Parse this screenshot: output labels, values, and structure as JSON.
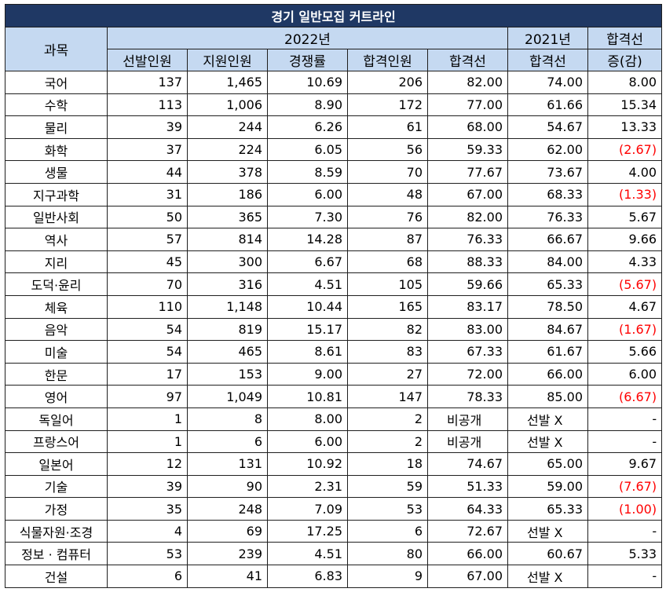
{
  "title": "경기 일반모집 커트라인",
  "header": {
    "subject": "과목",
    "year2022": "2022년",
    "year2021": "2021년",
    "diff_line1": "합격선",
    "diff_line2": "증(감)",
    "cols": [
      "선발인원",
      "지원인원",
      "경쟁률",
      "합격인원",
      "합격선",
      "합격선"
    ]
  },
  "colors": {
    "title_bg": "#1f3864",
    "header_bg": "#c5d9f1",
    "negative": "#ff0000"
  },
  "rows": [
    {
      "subject": "국어",
      "selected": "137",
      "applicants": "1,465",
      "ratio": "10.69",
      "passed": "206",
      "cut2022": "82.00",
      "cut2021": "74.00",
      "diff": "8.00",
      "neg": false
    },
    {
      "subject": "수학",
      "selected": "113",
      "applicants": "1,006",
      "ratio": "8.90",
      "passed": "172",
      "cut2022": "77.00",
      "cut2021": "61.66",
      "diff": "15.34",
      "neg": false
    },
    {
      "subject": "물리",
      "selected": "39",
      "applicants": "244",
      "ratio": "6.26",
      "passed": "61",
      "cut2022": "68.00",
      "cut2021": "54.67",
      "diff": "13.33",
      "neg": false
    },
    {
      "subject": "화학",
      "selected": "37",
      "applicants": "224",
      "ratio": "6.05",
      "passed": "56",
      "cut2022": "59.33",
      "cut2021": "62.00",
      "diff": "(2.67)",
      "neg": true
    },
    {
      "subject": "생물",
      "selected": "44",
      "applicants": "378",
      "ratio": "8.59",
      "passed": "70",
      "cut2022": "77.67",
      "cut2021": "73.67",
      "diff": "4.00",
      "neg": false
    },
    {
      "subject": "지구과학",
      "selected": "31",
      "applicants": "186",
      "ratio": "6.00",
      "passed": "48",
      "cut2022": "67.00",
      "cut2021": "68.33",
      "diff": "(1.33)",
      "neg": true
    },
    {
      "subject": "일반사회",
      "selected": "50",
      "applicants": "365",
      "ratio": "7.30",
      "passed": "76",
      "cut2022": "82.00",
      "cut2021": "76.33",
      "diff": "5.67",
      "neg": false
    },
    {
      "subject": "역사",
      "selected": "57",
      "applicants": "814",
      "ratio": "14.28",
      "passed": "87",
      "cut2022": "76.33",
      "cut2021": "66.67",
      "diff": "9.66",
      "neg": false
    },
    {
      "subject": "지리",
      "selected": "45",
      "applicants": "300",
      "ratio": "6.67",
      "passed": "68",
      "cut2022": "88.33",
      "cut2021": "84.00",
      "diff": "4.33",
      "neg": false
    },
    {
      "subject": "도덕·윤리",
      "selected": "70",
      "applicants": "316",
      "ratio": "4.51",
      "passed": "105",
      "cut2022": "59.66",
      "cut2021": "65.33",
      "diff": "(5.67)",
      "neg": true
    },
    {
      "subject": "체육",
      "selected": "110",
      "applicants": "1,148",
      "ratio": "10.44",
      "passed": "165",
      "cut2022": "83.17",
      "cut2021": "78.50",
      "diff": "4.67",
      "neg": false
    },
    {
      "subject": "음악",
      "selected": "54",
      "applicants": "819",
      "ratio": "15.17",
      "passed": "82",
      "cut2022": "83.00",
      "cut2021": "84.67",
      "diff": "(1.67)",
      "neg": true
    },
    {
      "subject": "미술",
      "selected": "54",
      "applicants": "465",
      "ratio": "8.61",
      "passed": "83",
      "cut2022": "67.33",
      "cut2021": "61.67",
      "diff": "5.66",
      "neg": false
    },
    {
      "subject": "한문",
      "selected": "17",
      "applicants": "153",
      "ratio": "9.00",
      "passed": "27",
      "cut2022": "72.00",
      "cut2021": "66.00",
      "diff": "6.00",
      "neg": false
    },
    {
      "subject": "영어",
      "selected": "97",
      "applicants": "1,049",
      "ratio": "10.81",
      "passed": "147",
      "cut2022": "78.33",
      "cut2021": "85.00",
      "diff": "(6.67)",
      "neg": true
    },
    {
      "subject": "독일어",
      "selected": "1",
      "applicants": "8",
      "ratio": "8.00",
      "passed": "2",
      "cut2022": "비공개",
      "cut2021": "선발 X",
      "diff": "-",
      "neg": false,
      "cut2022_text": true,
      "cut2021_text": true
    },
    {
      "subject": "프랑스어",
      "selected": "1",
      "applicants": "6",
      "ratio": "6.00",
      "passed": "2",
      "cut2022": "비공개",
      "cut2021": "선발 X",
      "diff": "-",
      "neg": false,
      "cut2022_text": true,
      "cut2021_text": true
    },
    {
      "subject": "일본어",
      "selected": "12",
      "applicants": "131",
      "ratio": "10.92",
      "passed": "18",
      "cut2022": "74.67",
      "cut2021": "65.00",
      "diff": "9.67",
      "neg": false
    },
    {
      "subject": "기술",
      "selected": "39",
      "applicants": "90",
      "ratio": "2.31",
      "passed": "59",
      "cut2022": "51.33",
      "cut2021": "59.00",
      "diff": "(7.67)",
      "neg": true
    },
    {
      "subject": "가정",
      "selected": "35",
      "applicants": "248",
      "ratio": "7.09",
      "passed": "53",
      "cut2022": "64.33",
      "cut2021": "65.33",
      "diff": "(1.00)",
      "neg": true
    },
    {
      "subject": "식물자원·조경",
      "selected": "4",
      "applicants": "69",
      "ratio": "17.25",
      "passed": "6",
      "cut2022": "72.67",
      "cut2021": "선발 X",
      "diff": "-",
      "neg": false,
      "cut2021_text": true
    },
    {
      "subject": "정보 · 컴퓨터",
      "selected": "53",
      "applicants": "239",
      "ratio": "4.51",
      "passed": "80",
      "cut2022": "66.00",
      "cut2021": "60.67",
      "diff": "5.33",
      "neg": false
    },
    {
      "subject": "건설",
      "selected": "6",
      "applicants": "41",
      "ratio": "6.83",
      "passed": "9",
      "cut2022": "67.00",
      "cut2021": "선발 X",
      "diff": "-",
      "neg": false,
      "cut2021_text": true
    }
  ]
}
